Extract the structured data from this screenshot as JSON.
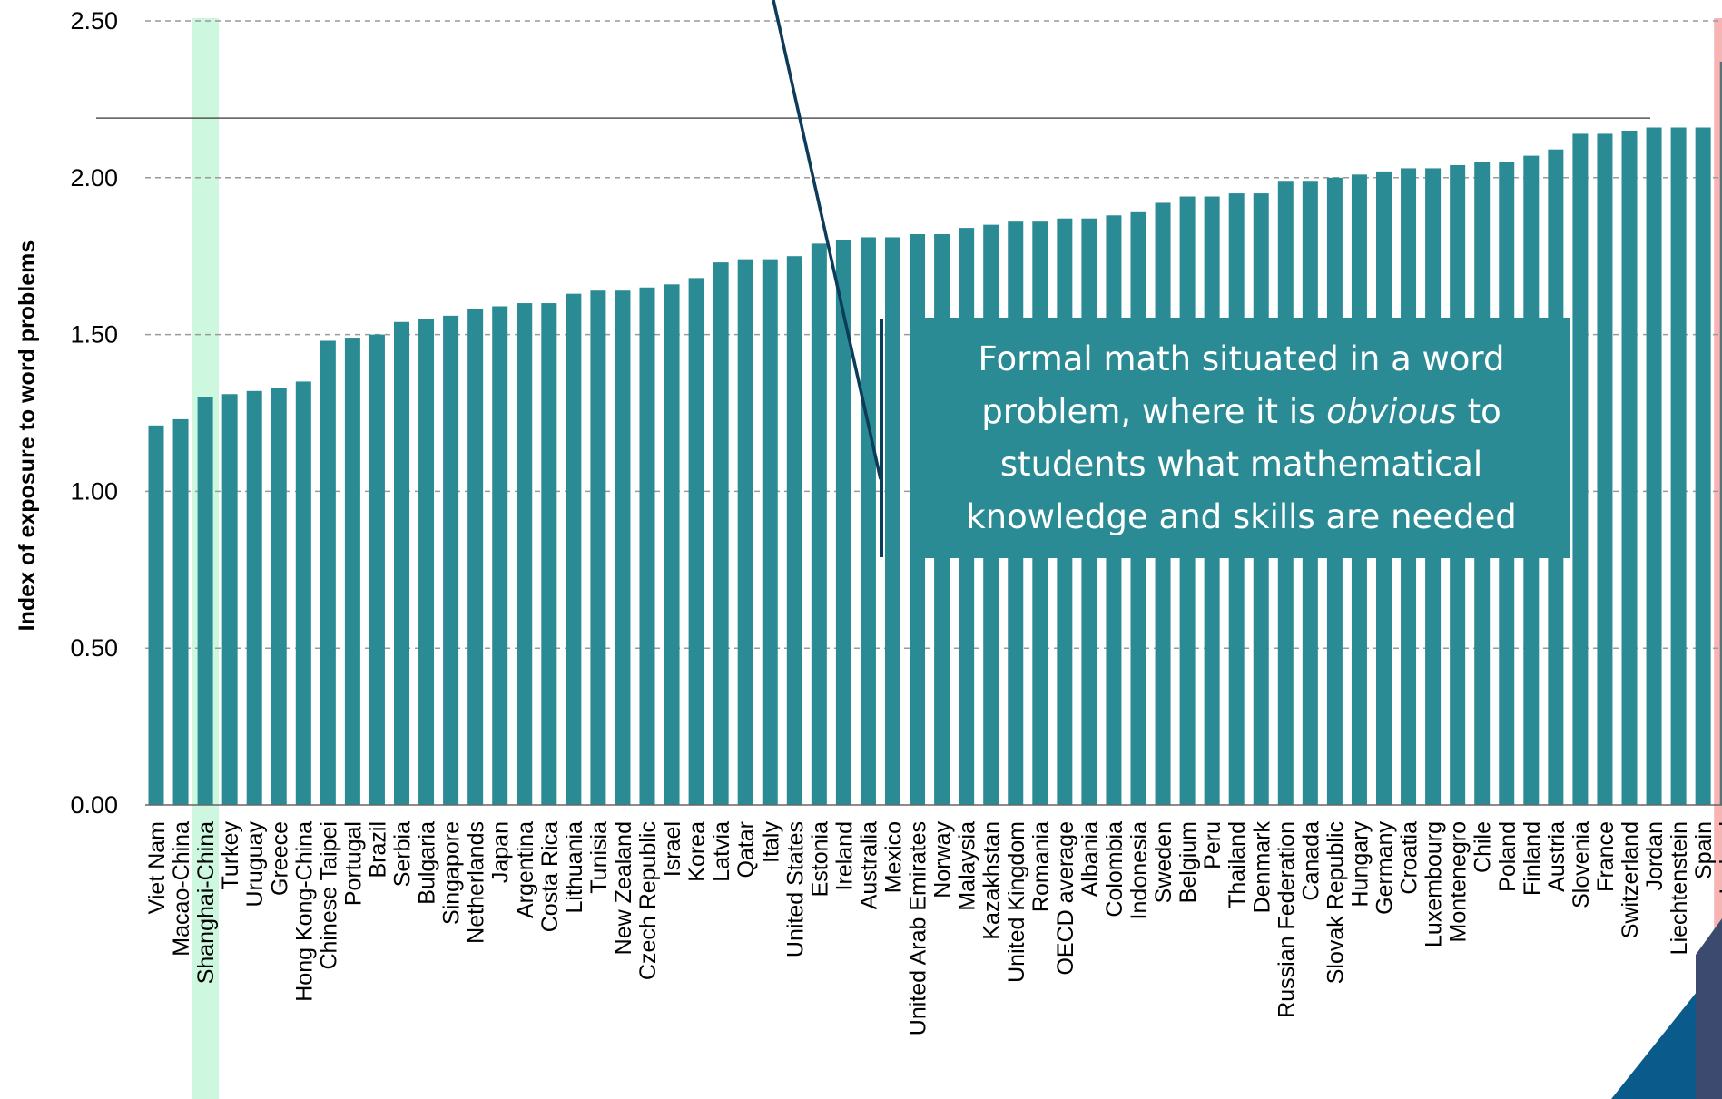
{
  "chart_data": {
    "type": "bar",
    "title": "",
    "xlabel": "",
    "ylabel": "Index of exposure to word problems",
    "ylim": [
      0,
      2.5
    ],
    "yticks": [
      "0.00",
      "0.50",
      "1.00",
      "1.50",
      "2.00",
      "2.50"
    ],
    "grid": true,
    "reference_line": 2.19,
    "highlighted_categories": [
      "Shanghai-China",
      "Iceland"
    ],
    "categories": [
      "Viet Nam",
      "Macao-China",
      "Shanghai-China",
      "Turkey",
      "Uruguay",
      "Greece",
      "Hong Kong-China",
      "Chinese Taipei",
      "Portugal",
      "Brazil",
      "Serbia",
      "Bulgaria",
      "Singapore",
      "Netherlands",
      "Japan",
      "Argentina",
      "Costa Rica",
      "Lithuania",
      "Tunisia",
      "New Zealand",
      "Czech Republic",
      "Israel",
      "Korea",
      "Latvia",
      "Qatar",
      "Italy",
      "United States",
      "Estonia",
      "Ireland",
      "Australia",
      "Mexico",
      "United Arab Emirates",
      "Norway",
      "Malaysia",
      "Kazakhstan",
      "United Kingdom",
      "Romania",
      "OECD average",
      "Albania",
      "Colombia",
      "Indonesia",
      "Sweden",
      "Belgium",
      "Peru",
      "Thailand",
      "Denmark",
      "Russian Federation",
      "Canada",
      "Slovak Republic",
      "Hungary",
      "Germany",
      "Croatia",
      "Luxembourg",
      "Montenegro",
      "Chile",
      "Poland",
      "Finland",
      "Austria",
      "Slovenia",
      "France",
      "Switzerland",
      "Jordan",
      "Liechtenstein",
      "Spain",
      "Iceland"
    ],
    "values": [
      1.21,
      1.23,
      1.3,
      1.31,
      1.32,
      1.33,
      1.35,
      1.48,
      1.49,
      1.5,
      1.54,
      1.55,
      1.56,
      1.58,
      1.59,
      1.6,
      1.6,
      1.63,
      1.64,
      1.64,
      1.65,
      1.66,
      1.68,
      1.73,
      1.74,
      1.74,
      1.75,
      1.79,
      1.8,
      1.81,
      1.81,
      1.82,
      1.82,
      1.84,
      1.85,
      1.86,
      1.86,
      1.87,
      1.87,
      1.88,
      1.89,
      1.92,
      1.94,
      1.94,
      1.95,
      1.95,
      1.99,
      1.99,
      2.0,
      2.01,
      2.02,
      2.03,
      2.03,
      2.04,
      2.05,
      2.05,
      2.07,
      2.09,
      2.14,
      2.14,
      2.15,
      2.16,
      2.16,
      2.16,
      2.37
    ]
  },
  "callout": {
    "line1": "Formal math situated in a word",
    "line2_pre": "problem, where it is ",
    "line2_em": "obvious",
    "line2_post": " to",
    "line3": "students what mathematical",
    "line4": "knowledge and skills are needed"
  },
  "colors": {
    "bar": "#2a8b95",
    "bar_highlight_iceland": "#5f6f7a",
    "highlight_green": "#cdf7de",
    "highlight_red": "#f8b4b4",
    "grid": "#9a9a9a",
    "arrow": "#0d3b5a",
    "deco_blue": "#0b5a8c",
    "deco_slate": "#3b4a6e"
  }
}
